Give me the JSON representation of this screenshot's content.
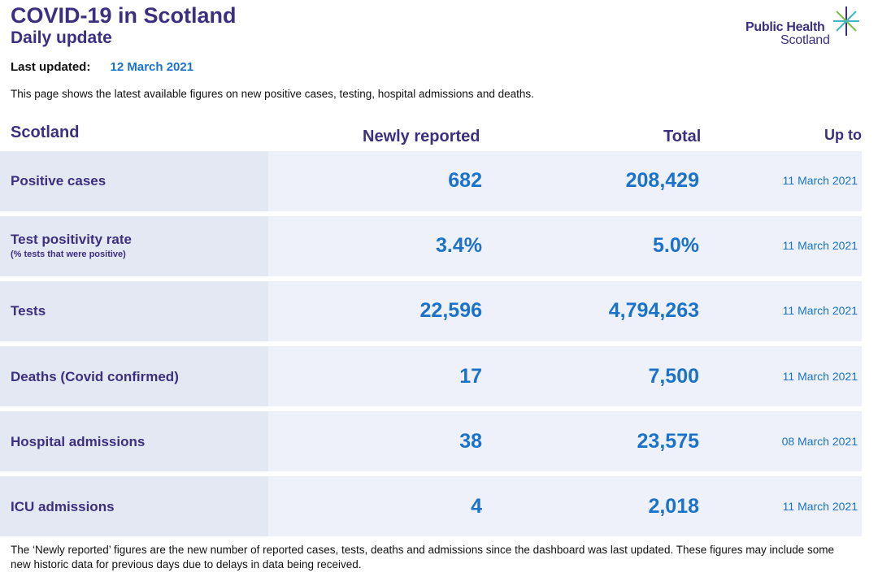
{
  "header": {
    "title": "COVID-19 in Scotland",
    "subtitle": "Daily update"
  },
  "logo": {
    "line1": "Public Health",
    "line2": "Scotland",
    "accent_colors": [
      "#3d2f80",
      "#40b7c7",
      "#7ac143"
    ]
  },
  "last_updated": {
    "label": "Last updated:",
    "value": "12 March 2021"
  },
  "intro": "This page shows the latest available figures on new positive cases, testing, hospital admissions and deaths.",
  "table": {
    "headers": {
      "area": "Scotland",
      "newly_reported": "Newly reported",
      "total": "Total",
      "up_to": "Up to"
    },
    "rows": [
      {
        "label": "Positive cases",
        "sublabel": "",
        "newly_reported": "682",
        "total": "208,429",
        "up_to": "11 March 2021"
      },
      {
        "label": "Test positivity rate",
        "sublabel": "(% tests that were positive)",
        "newly_reported": "3.4%",
        "total": "5.0%",
        "up_to": "11 March 2021"
      },
      {
        "label": "Tests",
        "sublabel": "",
        "newly_reported": "22,596",
        "total": "4,794,263",
        "up_to": "11 March 2021"
      },
      {
        "label": "Deaths (Covid confirmed)",
        "sublabel": "",
        "newly_reported": "17",
        "total": "7,500",
        "up_to": "11 March 2021"
      },
      {
        "label": "Hospital admissions",
        "sublabel": "",
        "newly_reported": "38",
        "total": "23,575",
        "up_to": "08 March 2021"
      },
      {
        "label": "ICU admissions",
        "sublabel": "",
        "newly_reported": "4",
        "total": "2,018",
        "up_to": "11 March 2021"
      }
    ]
  },
  "footnote": "The ‘Newly reported’ figures are the new number of reported cases, tests, deaths and admissions since the dashboard was last updated. These figures may include some new historic data for previous days due to delays in data being received.",
  "colors": {
    "brand_purple": "#3d2f80",
    "value_blue": "#1a73c9",
    "row_bg": "#eef1fa",
    "label_bg": "#e4e8f3"
  }
}
